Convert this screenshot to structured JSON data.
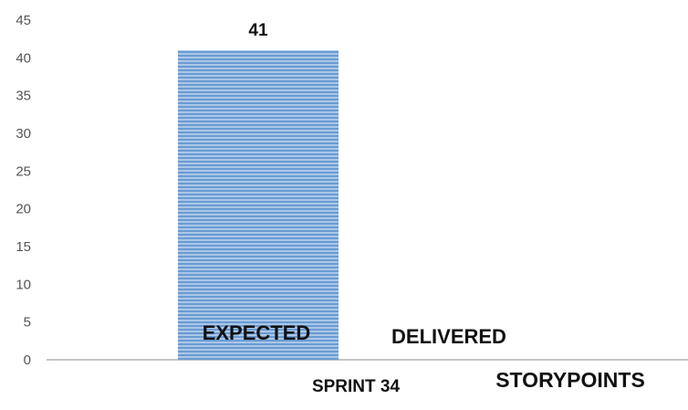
{
  "chart_data": {
    "type": "bar",
    "categories": [
      "SPRINT 34"
    ],
    "series": [
      {
        "name": "EXPECTED",
        "values": [
          41
        ],
        "color": "#7aa6d8"
      },
      {
        "name": "DELIVERED",
        "values": [
          0
        ],
        "color": "#7aa6d8"
      }
    ],
    "data_labels": [
      "41"
    ],
    "axis_title": "STORYPOINTS",
    "ylim": [
      0,
      45
    ],
    "yticks": [
      0,
      5,
      10,
      15,
      20,
      25,
      30,
      35,
      40,
      45
    ],
    "grid": false,
    "legend": "none"
  }
}
